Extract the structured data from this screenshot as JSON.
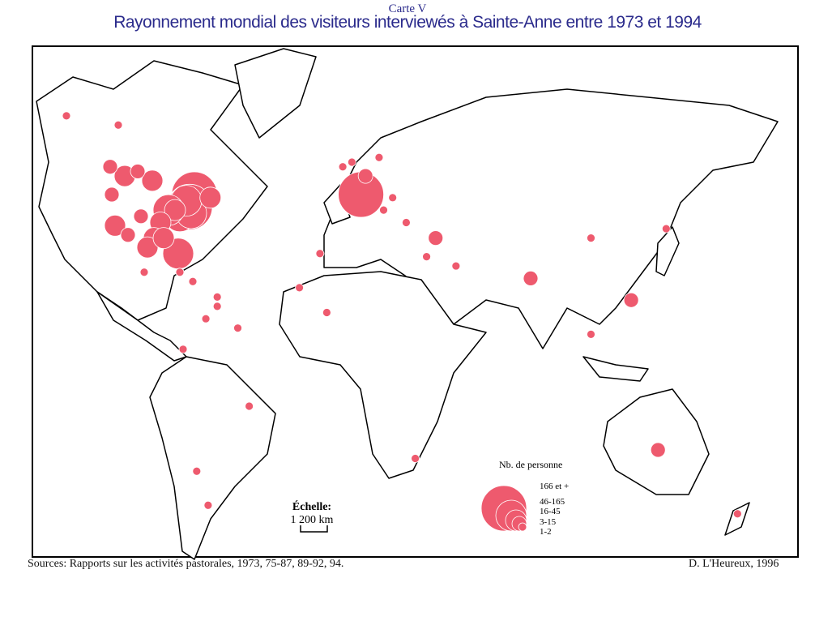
{
  "header": {
    "label": "Carte V",
    "title": "Rayonnement mondial des visiteurs interviewés à Sainte-Anne entre 1973 et 1994"
  },
  "colors": {
    "circle": "#ee5a6e",
    "title": "#2b2b8c",
    "land_stroke": "#000000"
  },
  "legend": {
    "title": "Nb. de personne",
    "classes": [
      {
        "label": "166 et +",
        "level": 5
      },
      {
        "label": "46-165",
        "level": 4
      },
      {
        "label": "16-45",
        "level": 3
      },
      {
        "label": "3-15",
        "level": 2
      },
      {
        "label": "1-2",
        "level": 1
      }
    ]
  },
  "scale": {
    "title": "Échelle:",
    "value": "1 200 km"
  },
  "footer": {
    "sources": "Sources: Rapports sur les activités pastorales, 1973, 75-87, 89-92, 94.",
    "author": "D. L'Heureux, 1996"
  },
  "locations": [
    {
      "lon": -71,
      "lat": 47,
      "level": 5
    },
    {
      "lon": -74,
      "lat": 43,
      "level": 5
    },
    {
      "lon": -78,
      "lat": 44,
      "level": 4
    },
    {
      "lon": -80,
      "lat": 40,
      "level": 4
    },
    {
      "lon": -73,
      "lat": 41,
      "level": 4
    },
    {
      "lon": -76,
      "lat": 45,
      "level": 4
    },
    {
      "lon": -83,
      "lat": 42,
      "level": 3
    },
    {
      "lon": -87,
      "lat": 42,
      "level": 4
    },
    {
      "lon": -92,
      "lat": 38,
      "level": 3
    },
    {
      "lon": -96,
      "lat": 33,
      "level": 3
    },
    {
      "lon": -81,
      "lat": 28,
      "level": 4
    },
    {
      "lon": -64,
      "lat": 46,
      "level": 3
    },
    {
      "lon": -97,
      "lat": 50,
      "level": 3
    },
    {
      "lon": -106,
      "lat": 52,
      "level": 2
    },
    {
      "lon": -114,
      "lat": 51,
      "level": 3
    },
    {
      "lon": -123,
      "lat": 53,
      "level": 2
    },
    {
      "lon": -122,
      "lat": 47,
      "level": 2
    },
    {
      "lon": -120,
      "lat": 37,
      "level": 3
    },
    {
      "lon": -112,
      "lat": 34,
      "level": 2
    },
    {
      "lon": -104,
      "lat": 40,
      "level": 2
    },
    {
      "lon": -100,
      "lat": 30,
      "level": 3
    },
    {
      "lon": -90,
      "lat": 33,
      "level": 3
    },
    {
      "lon": -150,
      "lat": 64,
      "level": 1
    },
    {
      "lon": -118,
      "lat": 62,
      "level": 1
    },
    {
      "lon": -102,
      "lat": 22,
      "level": 1
    },
    {
      "lon": -80,
      "lat": 22,
      "level": 1
    },
    {
      "lon": -72,
      "lat": 19,
      "level": 1
    },
    {
      "lon": -61,
      "lat": 14,
      "level": 1
    },
    {
      "lon": -61,
      "lat": 11,
      "level": 1
    },
    {
      "lon": -66,
      "lat": 7,
      "level": 1
    },
    {
      "lon": -52,
      "lat": 4,
      "level": 1
    },
    {
      "lon": -78,
      "lat": -2,
      "level": 1
    },
    {
      "lon": -47,
      "lat": -15,
      "level": 1
    },
    {
      "lon": -70,
      "lat": -30,
      "level": 1
    },
    {
      "lon": -65,
      "lat": -38,
      "level": 1
    },
    {
      "lon": 2,
      "lat": 47,
      "level": 5
    },
    {
      "lon": -2,
      "lat": 54,
      "level": 1
    },
    {
      "lon": -6,
      "lat": 53,
      "level": 1
    },
    {
      "lon": 4,
      "lat": 51,
      "level": 2
    },
    {
      "lon": 10,
      "lat": 55,
      "level": 1
    },
    {
      "lon": -16,
      "lat": 28,
      "level": 1
    },
    {
      "lon": 12,
      "lat": 42,
      "level": 1
    },
    {
      "lon": 22,
      "lat": 38,
      "level": 1
    },
    {
      "lon": 16,
      "lat": 46,
      "level": 1
    },
    {
      "lon": 35,
      "lat": 33,
      "level": 2
    },
    {
      "lon": 31,
      "lat": 27,
      "level": 1
    },
    {
      "lon": 44,
      "lat": 24,
      "level": 1
    },
    {
      "lon": -25,
      "lat": 17,
      "level": 1
    },
    {
      "lon": -13,
      "lat": 9,
      "level": 1
    },
    {
      "lon": 26,
      "lat": -27,
      "level": 1
    },
    {
      "lon": 77,
      "lat": 20,
      "level": 2
    },
    {
      "lon": 104,
      "lat": 33,
      "level": 1
    },
    {
      "lon": 104,
      "lat": 2,
      "level": 1
    },
    {
      "lon": 122,
      "lat": 13,
      "level": 2
    },
    {
      "lon": 138,
      "lat": 36,
      "level": 1
    },
    {
      "lon": 134,
      "lat": -25,
      "level": 2
    },
    {
      "lon": 174,
      "lat": -40,
      "level": 1
    }
  ]
}
